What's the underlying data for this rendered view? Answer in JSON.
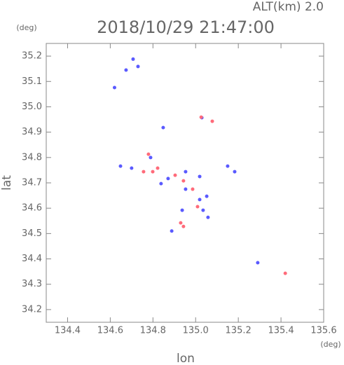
{
  "chart_data": {
    "type": "scatter",
    "title": "2018/10/29 21:47:00",
    "annotation": "ALT(km) 2.0",
    "x_label": "lon",
    "y_label": "lat",
    "x_unit": "(deg)",
    "y_unit": "(deg)",
    "xlim": [
      134.3,
      135.6
    ],
    "ylim": [
      34.15,
      35.25
    ],
    "xticks": [
      134.4,
      134.6,
      134.8,
      {
        "value": 135,
        "label": "135.0"
      },
      135.2,
      135.4,
      135.6
    ],
    "yticks": [
      34.2,
      34.3,
      34.4,
      34.5,
      34.6,
      34.7,
      34.8,
      34.9,
      {
        "value": 35,
        "label": "35.0"
      },
      35.1,
      35.2
    ],
    "series": [
      {
        "color": "#5a5aff",
        "x": [
          134.707,
          134.674,
          134.73,
          134.62,
          135.029,
          134.848,
          134.648,
          134.7,
          134.789,
          134.871,
          134.953,
          134.838,
          134.953,
          135.019,
          135.052,
          135.035,
          134.937,
          135.058,
          134.888,
          135.15,
          135.183,
          135.291,
          135.019
        ],
        "values": [
          35.188,
          35.145,
          35.159,
          35.076,
          34.957,
          34.918,
          34.766,
          34.758,
          34.8,
          34.717,
          34.744,
          34.697,
          34.675,
          34.634,
          34.647,
          34.592,
          34.592,
          34.564,
          34.51,
          34.766,
          34.744,
          34.385,
          34.725
        ]
      },
      {
        "color": "#ff6b7a",
        "x": [
          135.026,
          135.078,
          134.779,
          134.756,
          134.822,
          134.904,
          134.943,
          134.986,
          135.009,
          134.93,
          134.943,
          135.42,
          134.799
        ],
        "values": [
          34.959,
          34.943,
          34.813,
          34.744,
          34.758,
          34.73,
          34.708,
          34.675,
          34.606,
          34.542,
          34.528,
          34.343,
          34.744
        ]
      }
    ]
  }
}
